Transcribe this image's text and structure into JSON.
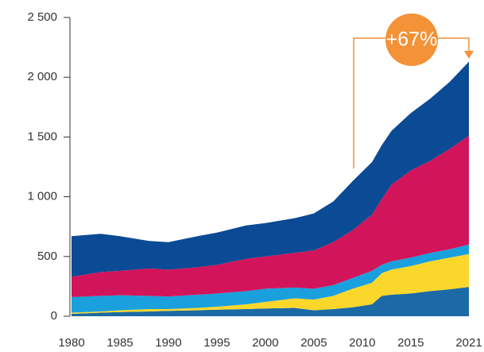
{
  "chart_data": {
    "type": "stacked_area",
    "x": [
      1980,
      1983,
      1985,
      1988,
      1990,
      1993,
      1995,
      1998,
      2000,
      2003,
      2005,
      2007,
      2009,
      2011,
      2012,
      2013,
      2015,
      2017,
      2019,
      2021
    ],
    "series": [
      {
        "color": "#1b6aa5",
        "values": [
          20,
          30,
          35,
          40,
          45,
          50,
          55,
          60,
          65,
          70,
          50,
          60,
          75,
          100,
          170,
          180,
          190,
          210,
          225,
          245
        ]
      },
      {
        "color": "#fcd72b",
        "values": [
          10,
          10,
          15,
          20,
          15,
          20,
          25,
          40,
          55,
          80,
          90,
          110,
          155,
          180,
          190,
          210,
          230,
          250,
          265,
          275
        ]
      },
      {
        "color": "#1aa0dc",
        "values": [
          130,
          130,
          125,
          110,
          105,
          110,
          110,
          110,
          110,
          90,
          90,
          90,
          90,
          100,
          70,
          70,
          70,
          70,
          70,
          80
        ]
      },
      {
        "color": "#d2145a",
        "values": [
          170,
          200,
          205,
          230,
          225,
          230,
          240,
          270,
          270,
          290,
          320,
          360,
          400,
          470,
          550,
          640,
          730,
          770,
          840,
          910
        ]
      },
      {
        "color": "#0b4a94",
        "values": [
          340,
          320,
          290,
          230,
          230,
          260,
          270,
          280,
          280,
          290,
          310,
          340,
          410,
          440,
          450,
          450,
          480,
          520,
          560,
          620
        ]
      }
    ],
    "xlim": [
      1980,
      2021
    ],
    "xticks": [
      1980,
      1985,
      1990,
      1995,
      2000,
      2005,
      2010,
      2015,
      2021
    ],
    "ylim": [
      0,
      2500
    ],
    "yticks": [
      {
        "value": 0,
        "label": "0"
      },
      {
        "value": 500,
        "label": "500"
      },
      {
        "value": 1000,
        "label": "1 000"
      },
      {
        "value": 1500,
        "label": "1 500"
      },
      {
        "value": 2000,
        "label": "2 000"
      },
      {
        "value": 2500,
        "label": "2 500"
      }
    ],
    "annotation": "+67%"
  }
}
